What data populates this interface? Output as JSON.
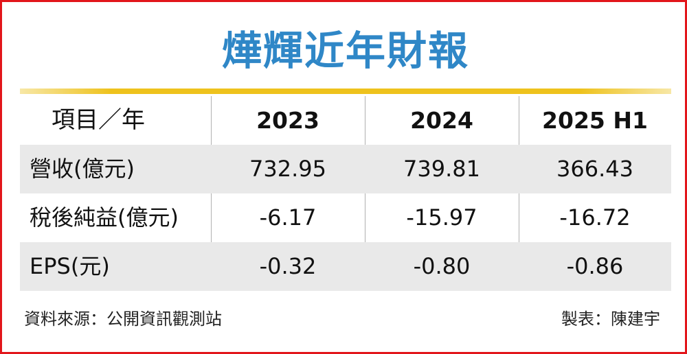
{
  "title": "燁輝近年財報",
  "table": {
    "columns": [
      "項目／年",
      "2023",
      "2024",
      "2025 H1"
    ],
    "rows": [
      {
        "label": "營收(億元)",
        "values": [
          "732.95",
          "739.81",
          "366.43"
        ]
      },
      {
        "label": "稅後純益(億元)",
        "values": [
          "-6.17",
          "-15.97",
          "-16.72"
        ]
      },
      {
        "label": "EPS(元)",
        "values": [
          "-0.32",
          "-0.80",
          "-0.86"
        ]
      }
    ]
  },
  "footer": {
    "source": "資料來源：公開資訊觀測站",
    "maker": "製表：陳建宇"
  },
  "colors": {
    "border": "#e2161b",
    "title": "#2f87c7",
    "divider": "#eec21d",
    "row_shade": "#e9e9e9"
  }
}
